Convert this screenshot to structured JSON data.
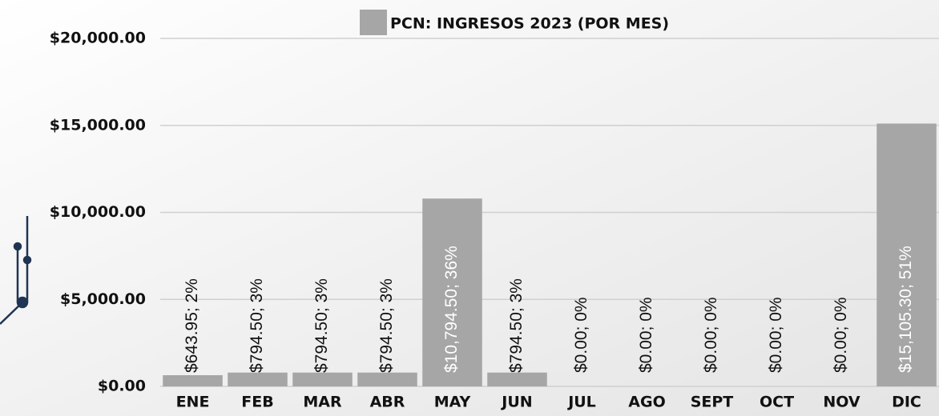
{
  "chart_data": {
    "type": "bar",
    "title": "PCN: INGRESOS 2023 (POR MES)",
    "categories": [
      "ENE",
      "FEB",
      "MAR",
      "ABR",
      "MAY",
      "JUN",
      "JUL",
      "AGO",
      "SEPT",
      "OCT",
      "NOV",
      "DIC"
    ],
    "values": [
      643.95,
      794.5,
      794.5,
      794.5,
      10794.5,
      794.5,
      0,
      0,
      0,
      0,
      0,
      15105.3
    ],
    "value_labels": [
      "$643.95; 2%",
      "$794.50; 3%",
      "$794.50; 3%",
      "$794.50; 3%",
      "$10,794.50; 36%",
      "$794.50; 3%",
      "$0.00; 0%",
      "$0.00; 0%",
      "$0.00; 0%",
      "$0.00; 0%",
      "$0.00; 0%",
      "$15,105.30; 51%"
    ],
    "color": "#a6a6a6",
    "ylim": [
      0,
      20000
    ],
    "yticks": [
      {
        "value": 0,
        "label": "$0.00"
      },
      {
        "value": 5000,
        "label": "$5,000.00"
      },
      {
        "value": 10000,
        "label": "$10,000.00"
      },
      {
        "value": 15000,
        "label": "$15,000.00"
      },
      {
        "value": 20000,
        "label": "$20,000.00"
      }
    ],
    "grid": true
  }
}
